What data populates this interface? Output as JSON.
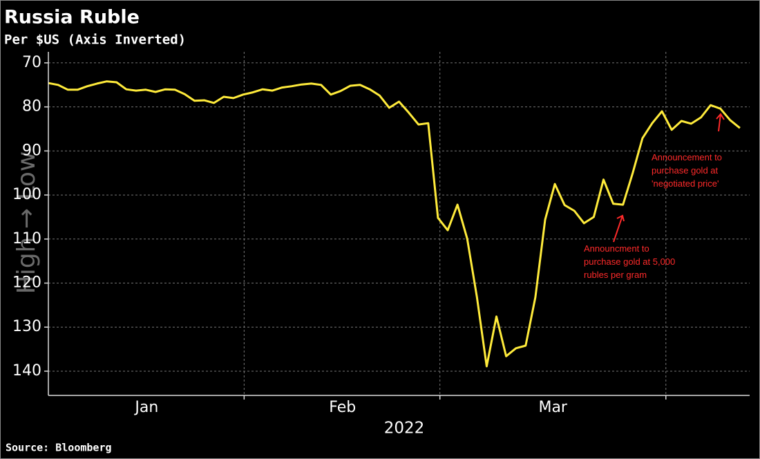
{
  "chart_data": {
    "type": "line",
    "title": "Russia Ruble",
    "subtitle": "Per $US (Axis Inverted)",
    "ylabel": "High → Low",
    "xlabel": "2022",
    "source": "Source: Bloomberg",
    "color": "#ffeb3b",
    "categories": [
      null,
      null,
      null,
      null,
      null,
      null,
      null,
      null,
      null,
      null,
      null,
      null,
      null,
      null,
      null,
      null,
      null,
      null,
      null,
      null,
      null,
      null,
      null,
      null,
      null,
      null,
      null,
      null,
      null,
      null,
      null,
      null,
      null,
      null,
      null,
      null,
      null,
      null,
      null,
      null,
      null,
      null,
      null,
      null,
      null,
      null,
      null,
      null,
      null,
      null,
      null,
      null,
      null,
      null,
      null,
      null,
      null,
      null,
      null,
      null,
      null,
      null,
      null,
      null,
      null,
      null,
      null,
      null,
      null,
      null,
      null,
      null
    ],
    "values": [
      74.6,
      75.0,
      76.1,
      76.1,
      75.3,
      74.7,
      74.2,
      74.4,
      76.0,
      76.3,
      76.1,
      76.6,
      76.0,
      76.1,
      77.1,
      78.6,
      78.5,
      79.1,
      77.7,
      78.0,
      77.2,
      76.7,
      76.0,
      76.3,
      75.6,
      75.3,
      74.9,
      74.7,
      75.0,
      77.2,
      76.4,
      75.2,
      75.0,
      76.0,
      77.4,
      80.2,
      78.8,
      81.3,
      84.0,
      83.7,
      105.2,
      108.0,
      102.2,
      109.9,
      123.2,
      138.9,
      127.6,
      136.6,
      134.8,
      134.2,
      123.2,
      105.6,
      97.5,
      102.3,
      103.6,
      106.4,
      105.0,
      96.5,
      102.0,
      102.2,
      95.0,
      87.1,
      83.7,
      81.0,
      85.2,
      83.2,
      83.8,
      82.4,
      79.6,
      80.4,
      83.0,
      84.8
    ],
    "xlim": [
      0,
      72
    ],
    "xticks": [
      {
        "value": 10.1,
        "label": "Jan"
      },
      {
        "value": 30.2,
        "label": "Feb"
      },
      {
        "value": 51.8,
        "label": "Mar"
      }
    ],
    "x_separators": [
      20.1,
      40.2,
      63.4
    ],
    "ylim": [
      67.5,
      145.5
    ],
    "y_inverted": true,
    "yticks": [
      70,
      80,
      90,
      100,
      110,
      120,
      130,
      140
    ],
    "grid": true,
    "annotations": [
      {
        "lines": [
          "Announcment to",
          "purchase gold at 5,000",
          "rubles per gram"
        ],
        "color": "#ff2a2a"
      },
      {
        "lines": [
          "Announcement to",
          "purchase gold at",
          "'negotiated price'"
        ],
        "color": "#ff2a2a"
      }
    ]
  }
}
